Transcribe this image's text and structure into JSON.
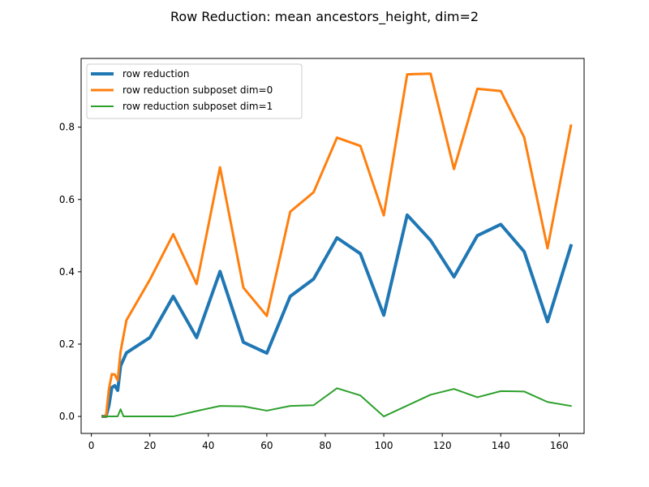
{
  "chart_data": {
    "type": "line",
    "title": "Row Reduction: mean ancestors_height, dim=2",
    "xlabel": "",
    "ylabel": "",
    "xlim": [
      -3.5,
      168.5
    ],
    "ylim": [
      -0.047,
      0.99
    ],
    "xticks": [
      0,
      20,
      40,
      60,
      80,
      100,
      120,
      140,
      160
    ],
    "yticks": [
      0.0,
      0.2,
      0.4,
      0.6,
      0.8
    ],
    "ytick_labels": [
      "0.0",
      "0.2",
      "0.4",
      "0.6",
      "0.8"
    ],
    "grid": false,
    "legend_placement": "top-left",
    "series": [
      {
        "name": "row reduction",
        "color": "#1f77b4",
        "line_width": 4,
        "points": [
          [
            4,
            0
          ],
          [
            5,
            0
          ],
          [
            6,
            0.03
          ],
          [
            7,
            0.08
          ],
          [
            8,
            0.085
          ],
          [
            9,
            0.072
          ],
          [
            10,
            0.14
          ],
          [
            12,
            0.176
          ],
          [
            20,
            0.218
          ],
          [
            28,
            0.332
          ],
          [
            36,
            0.218
          ],
          [
            44,
            0.401
          ],
          [
            52,
            0.205
          ],
          [
            60,
            0.175
          ],
          [
            68,
            0.332
          ],
          [
            76,
            0.38
          ],
          [
            84,
            0.494
          ],
          [
            92,
            0.45
          ],
          [
            100,
            0.28
          ],
          [
            108,
            0.557
          ],
          [
            116,
            0.487
          ],
          [
            124,
            0.386
          ],
          [
            132,
            0.5
          ],
          [
            140,
            0.531
          ],
          [
            148,
            0.456
          ],
          [
            156,
            0.262
          ],
          [
            164,
            0.472
          ]
        ]
      },
      {
        "name": "row reduction subposet dim=0",
        "color": "#ff7f0e",
        "line_width": 3,
        "points": [
          [
            4,
            0
          ],
          [
            5,
            0
          ],
          [
            6,
            0.075
          ],
          [
            7,
            0.117
          ],
          [
            8,
            0.116
          ],
          [
            9,
            0.1
          ],
          [
            10,
            0.18
          ],
          [
            12,
            0.266
          ],
          [
            20,
            0.378
          ],
          [
            28,
            0.504
          ],
          [
            36,
            0.366
          ],
          [
            44,
            0.689
          ],
          [
            52,
            0.356
          ],
          [
            60,
            0.278
          ],
          [
            68,
            0.566
          ],
          [
            76,
            0.62
          ],
          [
            84,
            0.771
          ],
          [
            92,
            0.748
          ],
          [
            100,
            0.556
          ],
          [
            108,
            0.946
          ],
          [
            116,
            0.948
          ],
          [
            124,
            0.684
          ],
          [
            132,
            0.906
          ],
          [
            140,
            0.9
          ],
          [
            148,
            0.772
          ],
          [
            156,
            0.465
          ],
          [
            164,
            0.804
          ]
        ]
      },
      {
        "name": "row reduction subposet dim=1",
        "color": "#2ca02c",
        "line_width": 2,
        "points": [
          [
            4,
            0
          ],
          [
            5,
            0
          ],
          [
            6,
            0
          ],
          [
            7,
            0
          ],
          [
            8,
            0
          ],
          [
            9,
            0
          ],
          [
            10,
            0.02
          ],
          [
            11,
            0
          ],
          [
            12,
            0
          ],
          [
            20,
            0
          ],
          [
            28,
            0
          ],
          [
            36,
            0.015
          ],
          [
            44,
            0.029
          ],
          [
            52,
            0.028
          ],
          [
            60,
            0.016
          ],
          [
            68,
            0.029
          ],
          [
            76,
            0.031
          ],
          [
            84,
            0.078
          ],
          [
            92,
            0.058
          ],
          [
            100,
            0
          ],
          [
            108,
            0.03
          ],
          [
            116,
            0.06
          ],
          [
            124,
            0.076
          ],
          [
            132,
            0.053
          ],
          [
            140,
            0.07
          ],
          [
            148,
            0.069
          ],
          [
            156,
            0.04
          ],
          [
            164,
            0.029
          ]
        ]
      }
    ]
  }
}
